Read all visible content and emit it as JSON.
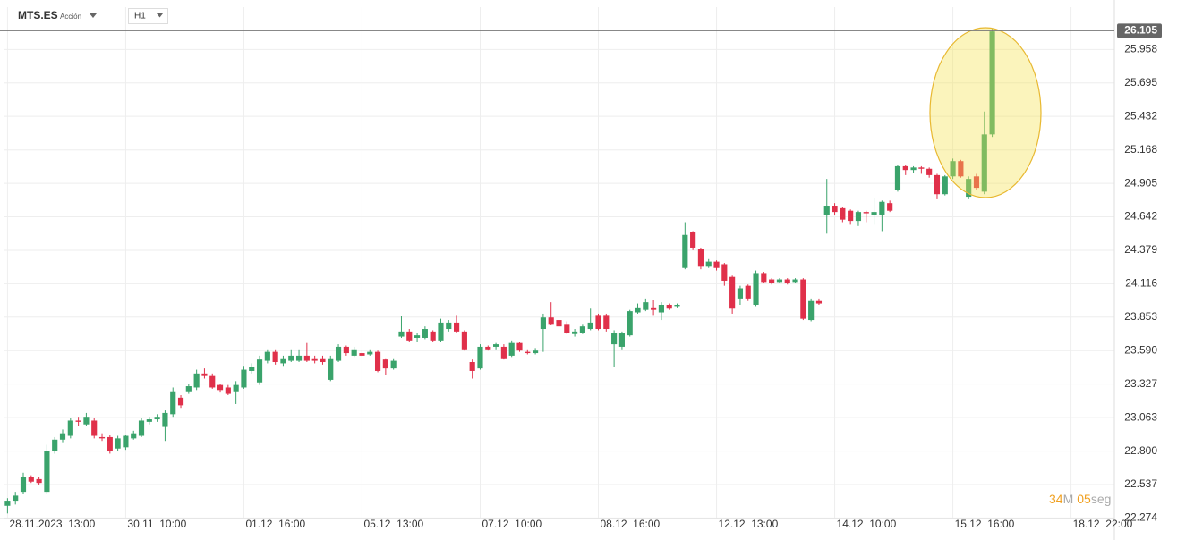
{
  "header": {
    "symbol": "MTS.ES",
    "asset_type": "Acción",
    "timeframe": "H1"
  },
  "countdown": {
    "minutes": "34",
    "minutes_unit": "M",
    "seconds": "05",
    "seconds_unit": "seg"
  },
  "chart_data": {
    "type": "candlestick",
    "up_color": "#3aa36b",
    "down_color": "#e0304a",
    "grid": true,
    "last_price": 26.105,
    "open": [
      22.37,
      22.41,
      22.48,
      22.6,
      22.58,
      22.48,
      22.8,
      22.89,
      22.92,
      23.04,
      23.01,
      23.04,
      22.91,
      22.91,
      22.82,
      22.83,
      22.9,
      22.92,
      23.03,
      23.05,
      22.99,
      23.09,
      23.22,
      23.27,
      23.3,
      23.41,
      23.39,
      23.32,
      23.3,
      23.27,
      23.3,
      23.43,
      23.34,
      23.51,
      23.58,
      23.49,
      23.51,
      23.51,
      23.55,
      23.53,
      23.53,
      23.36,
      23.51,
      23.62,
      23.55,
      23.57,
      23.56,
      23.58,
      23.52,
      23.45,
      23.7,
      23.74,
      23.69,
      23.69,
      23.74,
      23.67,
      23.76,
      23.81,
      23.74,
      23.5,
      23.45,
      23.62,
      23.62,
      23.62,
      23.55,
      23.65,
      23.58,
      23.57,
      23.76,
      23.85,
      23.83,
      23.8,
      23.72,
      23.73,
      23.76,
      23.87,
      23.87,
      23.64,
      23.62,
      23.71,
      23.89,
      23.91,
      23.93,
      23.89,
      23.95,
      23.94,
      24.24,
      24.52,
      24.39,
      24.25,
      24.29,
      24.27,
      24.17,
      24.0,
      24.1,
      23.95,
      24.2,
      24.15,
      24.13,
      24.15,
      24.13,
      24.15,
      23.83,
      23.98,
      24.66,
      24.73,
      24.71,
      24.69,
      24.61,
      24.68,
      24.66,
      24.66,
      24.75,
      24.85,
      25.04,
      25.01,
      25.03,
      25.02,
      24.97,
      24.82,
      24.96,
      25.08,
      24.8,
      24.96,
      24.84,
      25.29
    ],
    "high": [
      22.43,
      22.48,
      22.63,
      22.61,
      22.6,
      22.85,
      22.91,
      22.97,
      23.06,
      23.07,
      23.1,
      23.06,
      22.94,
      22.93,
      22.92,
      22.93,
      22.96,
      23.06,
      23.07,
      23.09,
      23.12,
      23.3,
      23.24,
      23.33,
      23.44,
      23.45,
      23.41,
      23.33,
      23.32,
      23.35,
      23.47,
      23.49,
      23.55,
      23.6,
      23.6,
      23.55,
      23.6,
      23.6,
      23.65,
      23.55,
      23.55,
      23.55,
      23.64,
      23.63,
      23.62,
      23.59,
      23.6,
      23.59,
      23.53,
      23.53,
      23.86,
      23.76,
      23.73,
      23.78,
      23.75,
      23.84,
      23.83,
      23.87,
      23.75,
      23.52,
      23.64,
      23.63,
      23.65,
      23.64,
      23.67,
      23.66,
      23.6,
      23.61,
      23.88,
      23.97,
      23.84,
      23.82,
      23.76,
      23.8,
      23.92,
      23.88,
      23.88,
      23.75,
      23.74,
      23.91,
      23.96,
      24.0,
      23.99,
      23.97,
      23.96,
      23.96,
      24.6,
      24.53,
      24.4,
      24.31,
      24.3,
      24.28,
      24.18,
      24.1,
      24.11,
      24.22,
      24.21,
      24.16,
      24.16,
      24.16,
      24.16,
      24.16,
      24.0,
      24.0,
      24.94,
      24.75,
      24.72,
      24.7,
      24.69,
      24.69,
      24.79,
      24.77,
      24.77,
      25.05,
      25.05,
      25.04,
      25.04,
      25.03,
      24.98,
      24.97,
      25.1,
      25.09,
      24.96,
      24.98,
      25.47,
      26.12
    ],
    "low": [
      22.31,
      22.38,
      22.46,
      22.55,
      22.53,
      22.46,
      22.78,
      22.87,
      22.9,
      23.0,
      23.0,
      22.9,
      22.88,
      22.78,
      22.8,
      22.81,
      22.89,
      22.91,
      23.01,
      23.03,
      22.88,
      23.07,
      23.14,
      23.25,
      23.28,
      23.37,
      23.29,
      23.26,
      23.24,
      23.17,
      23.29,
      23.41,
      23.32,
      23.49,
      23.48,
      23.47,
      23.5,
      23.5,
      23.5,
      23.49,
      23.48,
      23.35,
      23.5,
      23.55,
      23.54,
      23.54,
      23.55,
      23.42,
      23.4,
      23.44,
      23.69,
      23.66,
      23.66,
      23.68,
      23.66,
      23.66,
      23.74,
      23.73,
      23.59,
      23.37,
      23.44,
      23.59,
      23.6,
      23.52,
      23.54,
      23.58,
      23.56,
      23.56,
      23.58,
      23.79,
      23.77,
      23.72,
      23.7,
      23.72,
      23.75,
      23.75,
      23.74,
      23.46,
      23.6,
      23.7,
      23.88,
      23.9,
      23.87,
      23.83,
      23.91,
      23.93,
      24.23,
      24.38,
      24.23,
      24.24,
      24.22,
      24.1,
      23.88,
      23.95,
      23.98,
      23.94,
      24.12,
      24.11,
      24.12,
      24.11,
      24.12,
      23.83,
      23.82,
      23.95,
      24.51,
      24.66,
      24.6,
      24.58,
      24.57,
      24.6,
      24.58,
      24.53,
      24.68,
      24.84,
      24.97,
      24.99,
      24.98,
      24.95,
      24.78,
      24.81,
      24.94,
      24.95,
      24.78,
      24.85,
      24.82,
      25.27
    ],
    "close": [
      22.41,
      22.45,
      22.6,
      22.56,
      22.55,
      22.8,
      22.89,
      22.94,
      23.04,
      23.03,
      23.07,
      22.92,
      22.9,
      22.8,
      22.9,
      22.92,
      22.94,
      23.04,
      23.05,
      23.07,
      23.1,
      23.27,
      23.16,
      23.31,
      23.41,
      23.39,
      23.3,
      23.28,
      23.25,
      23.32,
      23.44,
      23.46,
      23.52,
      23.58,
      23.5,
      23.53,
      23.55,
      23.55,
      23.51,
      23.51,
      23.5,
      23.53,
      23.62,
      23.57,
      23.6,
      23.55,
      23.58,
      23.43,
      23.45,
      23.51,
      23.74,
      23.67,
      23.71,
      23.76,
      23.67,
      23.81,
      23.81,
      23.74,
      23.6,
      23.43,
      23.62,
      23.6,
      23.64,
      23.53,
      23.65,
      23.59,
      23.57,
      23.59,
      23.85,
      23.8,
      23.78,
      23.73,
      23.74,
      23.78,
      23.81,
      23.76,
      23.76,
      23.73,
      23.73,
      23.9,
      23.93,
      23.97,
      23.91,
      23.95,
      23.92,
      23.95,
      24.5,
      24.4,
      24.25,
      24.29,
      24.24,
      24.14,
      23.92,
      24.08,
      24.0,
      24.2,
      24.13,
      24.12,
      24.15,
      24.12,
      24.15,
      23.84,
      23.98,
      23.96,
      24.73,
      24.68,
      24.62,
      24.61,
      24.68,
      24.67,
      24.68,
      24.76,
      24.69,
      25.04,
      25.01,
      25.03,
      25.02,
      24.97,
      24.82,
      24.96,
      25.08,
      24.96,
      24.94,
      24.87,
      25.29,
      26.1
    ],
    "xlim": [
      -0.5,
      140.5
    ],
    "xticks": [
      {
        "value": 0,
        "label": "28.11.2023  13:00"
      },
      {
        "value": 15,
        "label": "30.11  10:00"
      },
      {
        "value": 30,
        "label": "01.12  16:00"
      },
      {
        "value": 45,
        "label": "05.12  13:00"
      },
      {
        "value": 60,
        "label": "07.12  10:00"
      },
      {
        "value": 75,
        "label": "08.12  16:00"
      },
      {
        "value": 90,
        "label": "12.12  13:00"
      },
      {
        "value": 105,
        "label": "14.12  10:00"
      },
      {
        "value": 120,
        "label": "15.12  16:00"
      },
      {
        "value": 135,
        "label": "18.12  22:00"
      }
    ],
    "ylim": [
      22.27,
      26.15
    ],
    "yticks": [
      22.274,
      22.537,
      {
        "value": 22.8,
        "label": "22.800"
      },
      23.063,
      23.327,
      {
        "value": 23.59,
        "label": "23.590"
      },
      23.853,
      24.116,
      24.379,
      24.642,
      24.905,
      25.168,
      25.432,
      25.695,
      25.958
    ]
  }
}
